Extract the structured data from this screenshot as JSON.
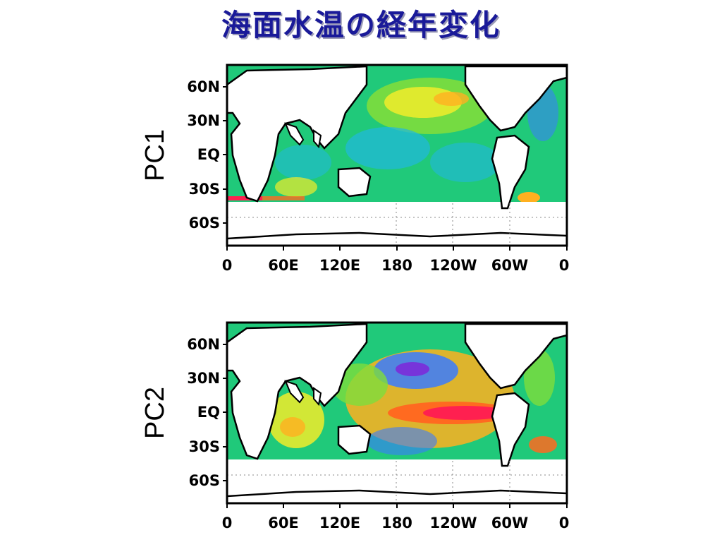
{
  "title": "海面水温の経年変化",
  "panels": [
    {
      "label": "PC1",
      "y_ticks": [
        "60N",
        "30N",
        "EQ",
        "30S",
        "60S"
      ],
      "x_ticks": [
        "0",
        "60E",
        "120E",
        "180",
        "120W",
        "60W",
        "0"
      ],
      "pattern": "basin-wide warming, weak amplitude"
    },
    {
      "label": "PC2",
      "y_ticks": [
        "60N",
        "30N",
        "EQ",
        "30S",
        "60S"
      ],
      "x_ticks": [
        "0",
        "60E",
        "120E",
        "180",
        "120W",
        "60W",
        "0"
      ],
      "pattern": "El Nino-like equatorial Pacific warm anomaly"
    }
  ],
  "colors": {
    "title": "#1a1a99",
    "land": "#ffffff",
    "coast": "#000000",
    "scale": [
      "#7b2bd9",
      "#3a7bff",
      "#21b8e0",
      "#20c97a",
      "#7edd3c",
      "#f2ec2a",
      "#ffb020",
      "#ff6a20",
      "#ff2050"
    ]
  }
}
